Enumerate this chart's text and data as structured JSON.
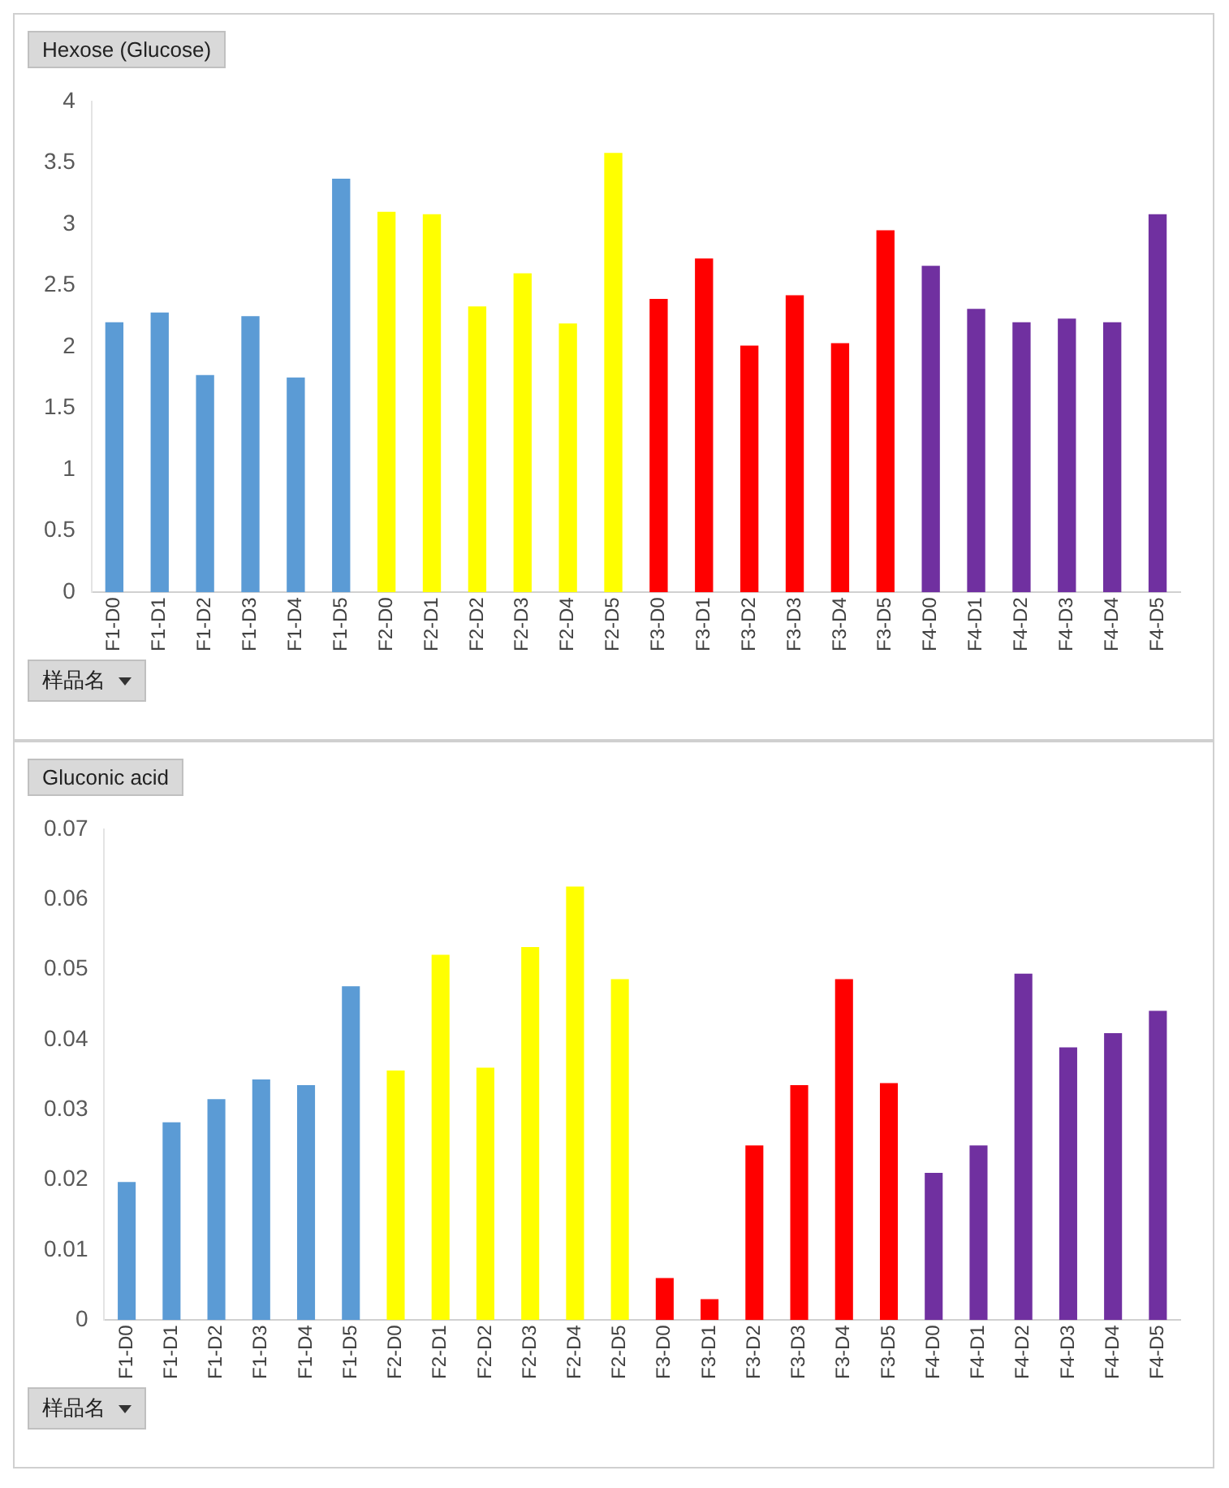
{
  "chart_data": [
    {
      "type": "bar",
      "title": "Hexose (Glucose)",
      "xlabel": "样品名",
      "categories": [
        "F1-D0",
        "F1-D1",
        "F1-D2",
        "F1-D3",
        "F1-D4",
        "F1-D5",
        "F2-D0",
        "F2-D1",
        "F2-D2",
        "F2-D3",
        "F2-D4",
        "F2-D5",
        "F3-D0",
        "F3-D1",
        "F3-D2",
        "F3-D3",
        "F3-D4",
        "F3-D5",
        "F4-D0",
        "F4-D1",
        "F4-D2",
        "F4-D3",
        "F4-D4",
        "F4-D5"
      ],
      "values": [
        2.2,
        2.28,
        1.77,
        2.25,
        1.75,
        3.37,
        3.1,
        3.08,
        2.33,
        2.6,
        2.19,
        3.58,
        2.39,
        2.72,
        2.01,
        2.42,
        2.03,
        2.95,
        2.66,
        2.31,
        2.2,
        2.23,
        2.2,
        3.08
      ],
      "colors": [
        "#5b9bd5",
        "#5b9bd5",
        "#5b9bd5",
        "#5b9bd5",
        "#5b9bd5",
        "#5b9bd5",
        "#ffff00",
        "#ffff00",
        "#ffff00",
        "#ffff00",
        "#ffff00",
        "#ffff00",
        "#ff0000",
        "#ff0000",
        "#ff0000",
        "#ff0000",
        "#ff0000",
        "#ff0000",
        "#7030a0",
        "#7030a0",
        "#7030a0",
        "#7030a0",
        "#7030a0",
        "#7030a0"
      ],
      "ylim": [
        0,
        4
      ],
      "yticks": [
        0,
        0.5,
        1,
        1.5,
        2,
        2.5,
        3,
        3.5,
        4
      ]
    },
    {
      "type": "bar",
      "title": "Gluconic acid",
      "xlabel": "样品名",
      "categories": [
        "F1-D0",
        "F1-D1",
        "F1-D2",
        "F1-D3",
        "F1-D4",
        "F1-D5",
        "F2-D0",
        "F2-D1",
        "F2-D2",
        "F2-D3",
        "F2-D4",
        "F2-D5",
        "F3-D0",
        "F3-D1",
        "F3-D2",
        "F3-D3",
        "F3-D4",
        "F3-D5",
        "F4-D0",
        "F4-D1",
        "F4-D2",
        "F4-D3",
        "F4-D4",
        "F4-D5"
      ],
      "values": [
        0.0197,
        0.0282,
        0.0315,
        0.0343,
        0.0335,
        0.0476,
        0.0356,
        0.0521,
        0.036,
        0.0532,
        0.0618,
        0.0486,
        0.006,
        0.003,
        0.0249,
        0.0335,
        0.0486,
        0.0338,
        0.021,
        0.0249,
        0.0494,
        0.0389,
        0.0409,
        0.0441
      ],
      "colors": [
        "#5b9bd5",
        "#5b9bd5",
        "#5b9bd5",
        "#5b9bd5",
        "#5b9bd5",
        "#5b9bd5",
        "#ffff00",
        "#ffff00",
        "#ffff00",
        "#ffff00",
        "#ffff00",
        "#ffff00",
        "#ff0000",
        "#ff0000",
        "#ff0000",
        "#ff0000",
        "#ff0000",
        "#ff0000",
        "#7030a0",
        "#7030a0",
        "#7030a0",
        "#7030a0",
        "#7030a0",
        "#7030a0"
      ],
      "ylim": [
        0,
        0.07
      ],
      "yticks": [
        0,
        0.01,
        0.02,
        0.03,
        0.04,
        0.05,
        0.06,
        0.07
      ]
    }
  ]
}
